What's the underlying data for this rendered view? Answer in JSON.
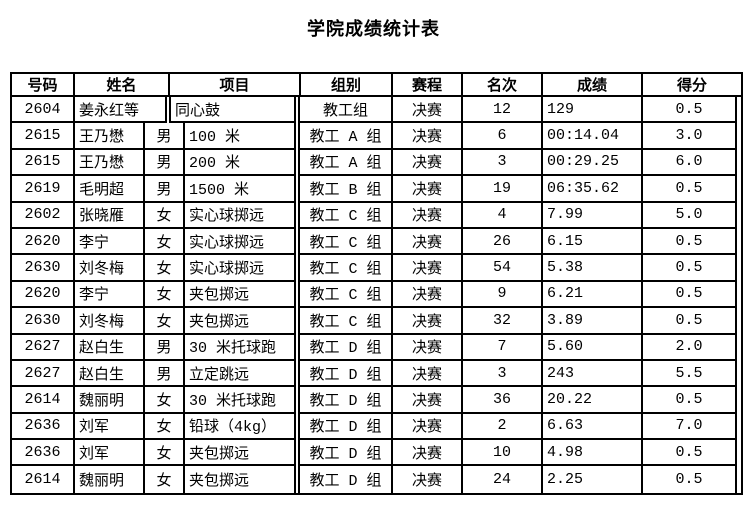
{
  "title": "学院成绩统计表",
  "table": {
    "headers": {
      "id": "号码",
      "name": "姓名",
      "event": "项目",
      "group": "组别",
      "stage": "赛程",
      "rank": "名次",
      "result": "成绩",
      "score": "得分"
    },
    "rows": [
      {
        "id": "2604",
        "name": "姜永红等",
        "gender": "",
        "event": "同心鼓",
        "group": "教工组",
        "stage": "决赛",
        "rank": "12",
        "result": "129",
        "score": "0.5",
        "merged": true
      },
      {
        "id": "2615",
        "name": "王乃懋",
        "gender": "男",
        "event": "100 米",
        "group": "教工 A 组",
        "stage": "决赛",
        "rank": "6",
        "result": "00:14.04",
        "score": "3.0"
      },
      {
        "id": "2615",
        "name": "王乃懋",
        "gender": "男",
        "event": "200 米",
        "group": "教工 A 组",
        "stage": "决赛",
        "rank": "3",
        "result": "00:29.25",
        "score": "6.0"
      },
      {
        "id": "2619",
        "name": "毛明超",
        "gender": "男",
        "event": "1500 米",
        "group": "教工 B 组",
        "stage": "决赛",
        "rank": "19",
        "result": "06:35.62",
        "score": "0.5"
      },
      {
        "id": "2602",
        "name": "张晓雁",
        "gender": "女",
        "event": "实心球掷远",
        "group": "教工 C 组",
        "stage": "决赛",
        "rank": "4",
        "result": "7.99",
        "score": "5.0"
      },
      {
        "id": "2620",
        "name": "李宁",
        "gender": "女",
        "event": "实心球掷远",
        "group": "教工 C 组",
        "stage": "决赛",
        "rank": "26",
        "result": "6.15",
        "score": "0.5"
      },
      {
        "id": "2630",
        "name": "刘冬梅",
        "gender": "女",
        "event": "实心球掷远",
        "group": "教工 C 组",
        "stage": "决赛",
        "rank": "54",
        "result": "5.38",
        "score": "0.5"
      },
      {
        "id": "2620",
        "name": "李宁",
        "gender": "女",
        "event": "夹包掷远",
        "group": "教工 C 组",
        "stage": "决赛",
        "rank": "9",
        "result": "6.21",
        "score": "0.5"
      },
      {
        "id": "2630",
        "name": "刘冬梅",
        "gender": "女",
        "event": "夹包掷远",
        "group": "教工 C 组",
        "stage": "决赛",
        "rank": "32",
        "result": "3.89",
        "score": "0.5"
      },
      {
        "id": "2627",
        "name": "赵白生",
        "gender": "男",
        "event": "30 米托球跑",
        "group": "教工 D 组",
        "stage": "决赛",
        "rank": "7",
        "result": "5.60",
        "score": "2.0"
      },
      {
        "id": "2627",
        "name": "赵白生",
        "gender": "男",
        "event": "立定跳远",
        "group": "教工 D 组",
        "stage": "决赛",
        "rank": "3",
        "result": "243",
        "score": "5.5"
      },
      {
        "id": "2614",
        "name": "魏丽明",
        "gender": "女",
        "event": "30 米托球跑",
        "group": "教工 D 组",
        "stage": "决赛",
        "rank": "36",
        "result": "20.22",
        "score": "0.5"
      },
      {
        "id": "2636",
        "name": "刘军",
        "gender": "女",
        "event": "铅球（4kg）",
        "group": "教工 D 组",
        "stage": "决赛",
        "rank": "2",
        "result": "6.63",
        "score": "7.0"
      },
      {
        "id": "2636",
        "name": "刘军",
        "gender": "女",
        "event": "夹包掷远",
        "group": "教工 D 组",
        "stage": "决赛",
        "rank": "10",
        "result": "4.98",
        "score": "0.5"
      },
      {
        "id": "2614",
        "name": "魏丽明",
        "gender": "女",
        "event": "夹包掷远",
        "group": "教工 D 组",
        "stage": "决赛",
        "rank": "24",
        "result": "2.25",
        "score": "0.5"
      }
    ]
  }
}
